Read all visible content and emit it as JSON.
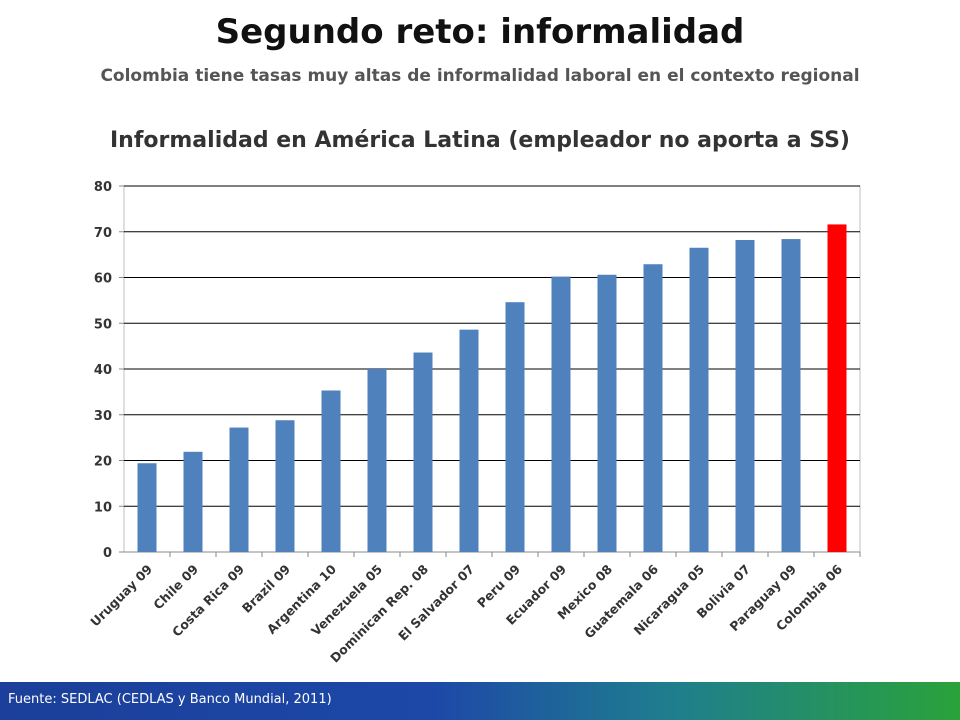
{
  "slide": {
    "title": "Segundo reto: informalidad",
    "subtitle": "Colombia tiene tasas muy altas de informalidad laboral en el contexto regional",
    "footer": "Fuente: SEDLAC (CEDLAS y Banco Mundial, 2011)"
  },
  "chart_data": {
    "type": "bar",
    "title": "Informalidad en América Latina (empleador no aporta a SS)",
    "xlabel": "",
    "ylabel": "",
    "categories": [
      "Uruguay 09",
      "Chile 09",
      "Costa Rica 09",
      "Brazil 09",
      "Argentina 10",
      "Venezuela 05",
      "Dominican Rep. 08",
      "El Salvador 07",
      "Peru 09",
      "Ecuador 09",
      "Mexico 08",
      "Guatemala 06",
      "Nicaragua 05",
      "Bolivia 07",
      "Paraguay 09",
      "Colombia 06"
    ],
    "values": [
      19.4,
      21.9,
      27.2,
      28.8,
      35.3,
      40.0,
      43.6,
      48.6,
      54.6,
      60.2,
      60.6,
      62.9,
      66.5,
      68.2,
      68.4,
      71.6
    ],
    "ylim": [
      0,
      80
    ],
    "yticks": [
      0,
      10,
      20,
      30,
      40,
      50,
      60,
      70,
      80
    ],
    "grid": true,
    "legend": "none",
    "colors": {
      "default_bar": "#4f81bd",
      "highlight_bar": "#ff0000",
      "highlight_category": "Colombia 06",
      "grid": "#000000",
      "axis_text": "#333333"
    }
  }
}
